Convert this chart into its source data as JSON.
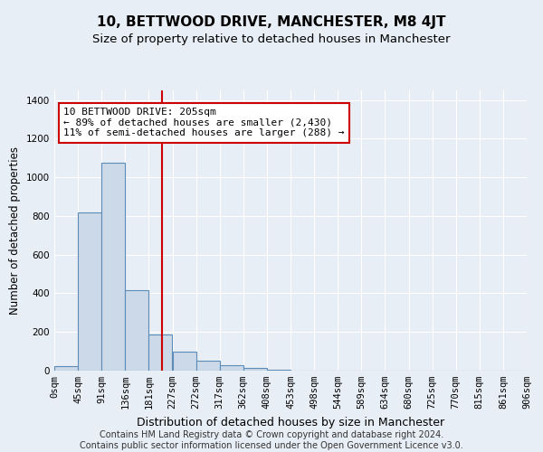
{
  "title": "10, BETTWOOD DRIVE, MANCHESTER, M8 4JT",
  "subtitle": "Size of property relative to detached houses in Manchester",
  "xlabel": "Distribution of detached houses by size in Manchester",
  "ylabel": "Number of detached properties",
  "footer_line1": "Contains HM Land Registry data © Crown copyright and database right 2024.",
  "footer_line2": "Contains public sector information licensed under the Open Government Licence v3.0.",
  "bin_labels": [
    "0sqm",
    "45sqm",
    "91sqm",
    "136sqm",
    "181sqm",
    "227sqm",
    "272sqm",
    "317sqm",
    "362sqm",
    "408sqm",
    "453sqm",
    "498sqm",
    "544sqm",
    "589sqm",
    "634sqm",
    "680sqm",
    "725sqm",
    "770sqm",
    "815sqm",
    "861sqm",
    "906sqm"
  ],
  "bar_values": [
    25,
    820,
    1075,
    415,
    185,
    100,
    50,
    30,
    15,
    5,
    0,
    0,
    0,
    0,
    0,
    0,
    0,
    0,
    0,
    0
  ],
  "bar_color": "#ccd9e8",
  "bar_edge_color": "#5b8db8",
  "bar_edge_width": 0.8,
  "property_line_x": 205,
  "annotation_text": "10 BETTWOOD DRIVE: 205sqm\n← 89% of detached houses are smaller (2,430)\n11% of semi-detached houses are larger (288) →",
  "annotation_box_color": "#ffffff",
  "annotation_box_edge_color": "#cc0000",
  "vline_color": "#cc0000",
  "ylim": [
    0,
    1450
  ],
  "yticks": [
    0,
    200,
    400,
    600,
    800,
    1000,
    1200,
    1400
  ],
  "bg_color": "#e8eef5",
  "plot_bg_color": "#e8eef5",
  "grid_color": "#ffffff",
  "title_fontsize": 11,
  "subtitle_fontsize": 9.5,
  "xlabel_fontsize": 9,
  "ylabel_fontsize": 8.5,
  "tick_fontsize": 7.5,
  "annotation_fontsize": 8,
  "footer_fontsize": 7
}
